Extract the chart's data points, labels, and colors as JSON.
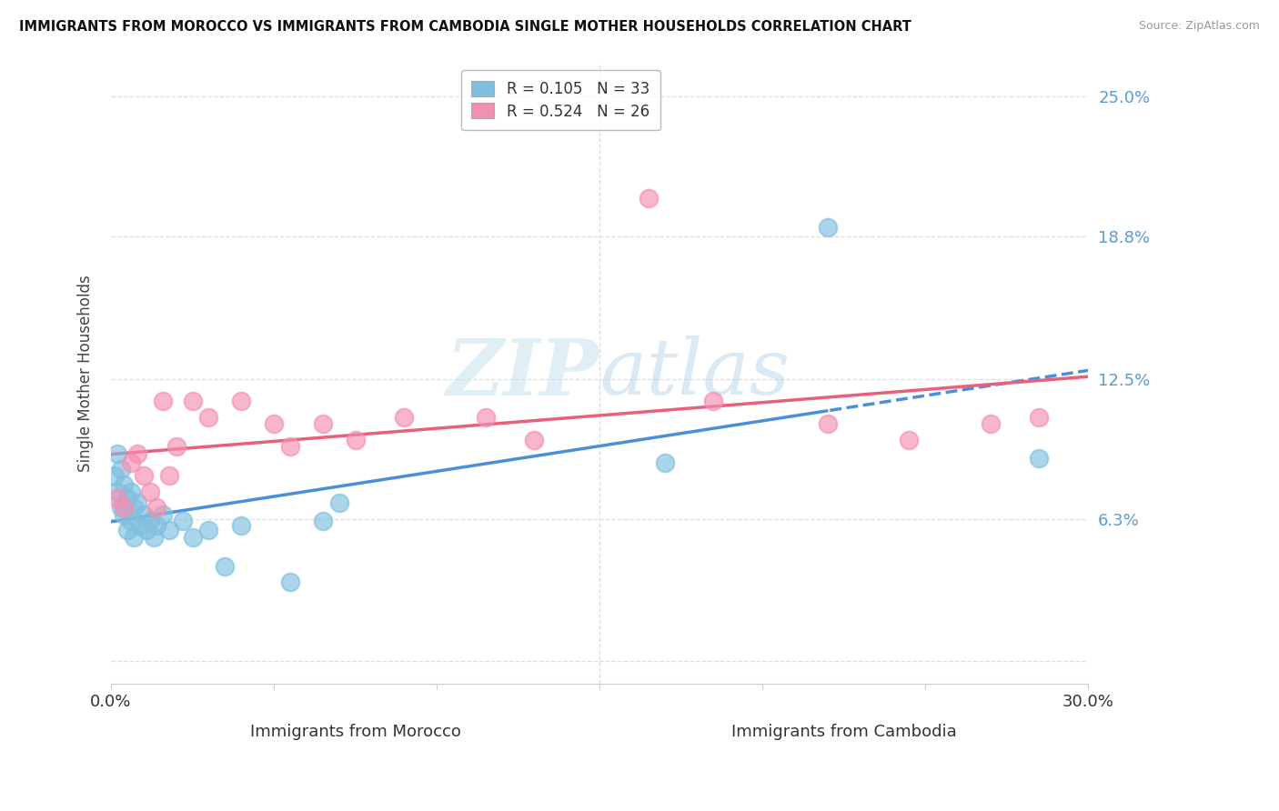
{
  "title": "IMMIGRANTS FROM MOROCCO VS IMMIGRANTS FROM CAMBODIA SINGLE MOTHER HOUSEHOLDS CORRELATION CHART",
  "source": "Source: ZipAtlas.com",
  "xlabel_morocco": "Immigrants from Morocco",
  "xlabel_cambodia": "Immigrants from Cambodia",
  "ylabel": "Single Mother Households",
  "xlim": [
    0.0,
    0.3
  ],
  "ylim": [
    -0.01,
    0.265
  ],
  "ytick_positions": [
    0.0,
    0.063,
    0.125,
    0.188,
    0.25
  ],
  "ytick_labels": [
    "",
    "6.3%",
    "12.5%",
    "18.8%",
    "25.0%"
  ],
  "xtick_positions": [
    0.0,
    0.05,
    0.1,
    0.15,
    0.2,
    0.25,
    0.3
  ],
  "xtick_labels": [
    "0.0%",
    "",
    "",
    "",
    "",
    "",
    "30.0%"
  ],
  "morocco_color": "#7fbfdf",
  "cambodia_color": "#f48fb1",
  "morocco_R": 0.105,
  "morocco_N": 33,
  "cambodia_R": 0.524,
  "cambodia_N": 26,
  "morocco_x": [
    0.001,
    0.002,
    0.002,
    0.003,
    0.003,
    0.004,
    0.004,
    0.005,
    0.005,
    0.006,
    0.006,
    0.007,
    0.007,
    0.008,
    0.009,
    0.01,
    0.011,
    0.012,
    0.013,
    0.014,
    0.016,
    0.018,
    0.022,
    0.025,
    0.03,
    0.035,
    0.04,
    0.055,
    0.065,
    0.07,
    0.17,
    0.22,
    0.285
  ],
  "morocco_y": [
    0.082,
    0.092,
    0.075,
    0.085,
    0.068,
    0.078,
    0.065,
    0.072,
    0.058,
    0.075,
    0.062,
    0.068,
    0.055,
    0.07,
    0.06,
    0.065,
    0.058,
    0.062,
    0.055,
    0.06,
    0.065,
    0.058,
    0.062,
    0.055,
    0.058,
    0.042,
    0.06,
    0.035,
    0.062,
    0.07,
    0.088,
    0.192,
    0.09
  ],
  "cambodia_x": [
    0.002,
    0.004,
    0.006,
    0.008,
    0.01,
    0.012,
    0.014,
    0.016,
    0.018,
    0.02,
    0.025,
    0.03,
    0.04,
    0.05,
    0.055,
    0.065,
    0.075,
    0.09,
    0.115,
    0.13,
    0.165,
    0.185,
    0.22,
    0.245,
    0.27,
    0.285
  ],
  "cambodia_y": [
    0.072,
    0.068,
    0.088,
    0.092,
    0.082,
    0.075,
    0.068,
    0.115,
    0.082,
    0.095,
    0.115,
    0.108,
    0.115,
    0.105,
    0.095,
    0.105,
    0.098,
    0.108,
    0.108,
    0.098,
    0.205,
    0.115,
    0.105,
    0.098,
    0.105,
    0.108
  ],
  "morocco_line_solid_end": 0.22,
  "grid_color": "#dddddd",
  "grid_linestyle": "--",
  "spine_color": "#cccccc"
}
